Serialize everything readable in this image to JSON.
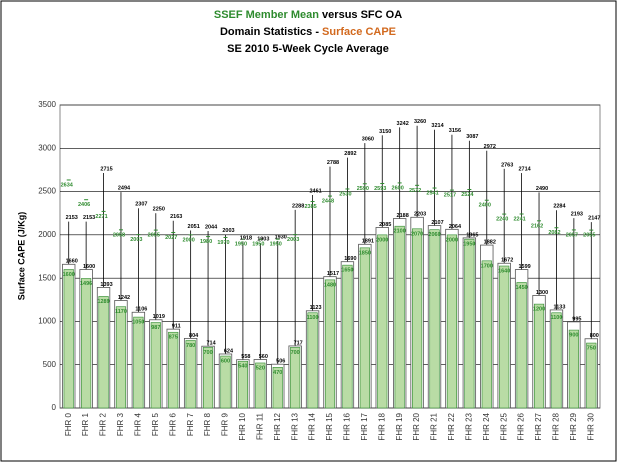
{
  "chart_data": {
    "type": "bar",
    "title": {
      "part1": "SSEF Member Mean",
      "part2": " versus SFC OA"
    },
    "subtitle": {
      "part1": "Domain Statistics - ",
      "part2": "Surface CAPE"
    },
    "subtitle2": "SE 2010 5-Week Cycle Average",
    "y_label": "Surface CAPE (J/Kg)",
    "categories": [
      "FHR 0",
      "FHR 1",
      "FHR 2",
      "FHR 3",
      "FHR 4",
      "FHR 5",
      "FHR 6",
      "FHR 7",
      "FHR 8",
      "FHR 9",
      "FHR 10",
      "FHR 11",
      "FHR 12",
      "FHR 13",
      "FHR 14",
      "FHR 15",
      "FHR 16",
      "FHR 17",
      "FHR 18",
      "FHR 19",
      "FHR 20",
      "FHR 21",
      "FHR 22",
      "FHR 23",
      "FHR 24",
      "FHR 25",
      "FHR 26",
      "FHR 27",
      "FHR 28",
      "FHR 29",
      "FHR 30"
    ],
    "series": [
      {
        "color": "#000000",
        "values": [
          1660,
          1600,
          1393,
          1242,
          1106,
          1019,
          911,
          804,
          714,
          624,
          558,
          560,
          506,
          717,
          1123,
          1517,
          1690,
          1891,
          2085,
          2188,
          2203,
          2107,
          2064,
          1965,
          1882,
          1672,
          1599,
          1300,
          1133,
          995,
          800
        ]
      },
      {
        "color": "#2e8b2e",
        "values": [
          1600,
          1496,
          1289,
          1170,
          1050,
          987,
          875,
          780,
          700,
          600,
          540,
          520,
          470,
          700,
          1100,
          1480,
          1650,
          1850,
          2000,
          2100,
          2070,
          2060,
          2000,
          1950,
          1700,
          1640,
          1450,
          1200,
          1100,
          900,
          750
        ]
      },
      {
        "color": "#000000",
        "values": [
          2153,
          2153,
          2715,
          2494,
          2307,
          2250,
          2163,
          2051,
          2044,
          2003,
          1918,
          1903,
          1930,
          2288,
          2461,
          2788,
          2892,
          3060,
          3150,
          3242,
          3260,
          3214,
          3156,
          3087,
          2972,
          2763,
          2714,
          2490,
          2284,
          2193,
          2147
        ]
      },
      {
        "color": "#2e8b2e",
        "values": [
          2634,
          2406,
          2271,
          2058,
          2003,
          2055,
          2027,
          2000,
          1980,
          1970,
          1950,
          1950,
          1950,
          2003,
          2385,
          2448,
          2530,
          2590,
          2593,
          2600,
          2572,
          2541,
          2517,
          2524,
          2400,
          2240,
          2241,
          2162,
          2082,
          2057,
          2055
        ]
      }
    ],
    "ylim": [
      0,
      3500
    ],
    "yticks": [
      0,
      500,
      1000,
      1500,
      2000,
      2500,
      3000,
      3500
    ],
    "grid": true
  }
}
